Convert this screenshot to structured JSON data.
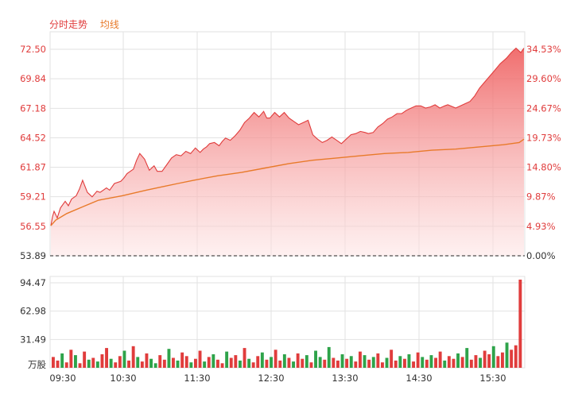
{
  "header": {
    "price_label": "分时走势",
    "avg_label": "均线"
  },
  "colors": {
    "up": "#e03c3c",
    "down": "#2ea34a",
    "avg_line": "#e87a2a",
    "grid": "#e2e2e2",
    "area_top": "#ee5555",
    "area_bottom": "#fde4e4"
  },
  "chart_data": {
    "type": "line",
    "price_axis": {
      "ticks": [
        "72.50",
        "69.84",
        "67.18",
        "64.52",
        "61.87",
        "59.21",
        "56.55",
        "53.89"
      ],
      "values": [
        72.5,
        69.84,
        67.18,
        64.52,
        61.87,
        59.21,
        56.55,
        53.89
      ],
      "ylim": [
        53.89,
        72.5
      ],
      "prev_close": 53.89
    },
    "percent_axis": {
      "ticks": [
        "34.53%",
        "29.60%",
        "24.67%",
        "19.73%",
        "14.80%",
        "9.87%",
        "4.93%",
        "0.00%"
      ]
    },
    "volume_axis": {
      "ticks": [
        "94.47",
        "62.98",
        "31.49"
      ],
      "values": [
        94.47,
        62.98,
        31.49
      ],
      "unit": "万股"
    },
    "x_ticks": [
      "09:30",
      "10:30",
      "11:30",
      "12:30",
      "13:30",
      "14:30",
      "15:30"
    ],
    "series": [
      {
        "name": "分时走势",
        "x": [
          0,
          2,
          4,
          8,
          12,
          18,
          22,
          26,
          32,
          36,
          40,
          46,
          52,
          58,
          62,
          70,
          74,
          80,
          88,
          92,
          96,
          104,
          108,
          112,
          118,
          124,
          130,
          134,
          140,
          148,
          152,
          158,
          164,
          170,
          176,
          182,
          188,
          192,
          196,
          200,
          206,
          212,
          216,
          220,
          226,
          232,
          238,
          244,
          250,
          256,
          262,
          268,
          272,
          276,
          282,
          288,
          294,
          300,
          306,
          312,
          318,
          324,
          330,
          336,
          342,
          348,
          354,
          360,
          366,
          372,
          378,
          384,
          390,
          396,
          400,
          406,
          412,
          418,
          424,
          430,
          436,
          442,
          448,
          454,
          460,
          466,
          472,
          478,
          484,
          490,
          496,
          500,
          510,
          516,
          522,
          528,
          534,
          540,
          546,
          552,
          558,
          566,
          574,
          580,
          586,
          592,
          596
        ],
        "values": [
          56.6,
          57.4,
          57.9,
          57.3,
          58.2,
          58.8,
          58.4,
          59.0,
          59.3,
          59.9,
          60.7,
          59.6,
          59.2,
          59.7,
          59.6,
          60.0,
          59.8,
          60.4,
          60.6,
          60.9,
          61.3,
          61.7,
          62.5,
          63.1,
          62.6,
          61.6,
          62.0,
          61.5,
          61.5,
          62.3,
          62.7,
          63.0,
          62.9,
          63.3,
          63.1,
          63.6,
          63.2,
          63.5,
          63.7,
          64.0,
          64.1,
          63.8,
          64.2,
          64.5,
          64.3,
          64.7,
          65.2,
          65.9,
          66.3,
          66.8,
          66.4,
          66.9,
          66.3,
          66.3,
          66.8,
          66.4,
          66.8,
          66.3,
          66.0,
          65.7,
          65.9,
          66.1,
          64.8,
          64.4,
          64.1,
          64.3,
          64.6,
          64.3,
          64.0,
          64.4,
          64.8,
          64.9,
          65.1,
          65.0,
          64.9,
          65.0,
          65.5,
          65.8,
          66.2,
          66.4,
          66.7,
          66.7,
          67.0,
          67.2,
          67.4,
          67.4,
          67.2,
          67.3,
          67.5,
          67.2,
          67.4,
          67.5,
          67.2,
          67.4,
          67.6,
          67.8,
          68.3,
          69.0,
          69.5,
          70.0,
          70.5,
          71.2,
          71.7,
          72.2,
          72.6,
          72.2,
          72.6
        ],
        "color": "#e03c3c"
      },
      {
        "name": "均线",
        "x": [
          0,
          6,
          20,
          40,
          60,
          90,
          120,
          140,
          160,
          180,
          210,
          240,
          270,
          300,
          330,
          360,
          390,
          420,
          450,
          480,
          510,
          540,
          570,
          590,
          596
        ],
        "values": [
          56.6,
          57.1,
          57.7,
          58.3,
          58.9,
          59.3,
          59.8,
          60.1,
          60.4,
          60.7,
          61.1,
          61.4,
          61.8,
          62.2,
          62.5,
          62.7,
          62.9,
          63.1,
          63.2,
          63.4,
          63.5,
          63.7,
          63.9,
          64.1,
          64.4
        ],
        "color": "#e87a2a"
      }
    ],
    "volume": [
      12,
      8,
      16,
      6,
      20,
      14,
      5,
      18,
      9,
      11,
      7,
      15,
      22,
      10,
      6,
      13,
      19,
      8,
      24,
      12,
      7,
      16,
      10,
      5,
      14,
      9,
      21,
      11,
      8,
      17,
      13,
      6,
      10,
      19,
      7,
      12,
      15,
      9,
      5,
      18,
      11,
      14,
      8,
      22,
      10,
      6,
      13,
      17,
      9,
      12,
      20,
      8,
      15,
      11,
      7,
      16,
      10,
      14,
      6,
      19,
      12,
      9,
      23,
      11,
      8,
      15,
      10,
      13,
      7,
      18,
      14,
      9,
      12,
      16,
      6,
      11,
      20,
      8,
      13,
      10,
      15,
      7,
      17,
      12,
      9,
      14,
      11,
      18,
      8,
      13,
      10,
      16,
      12,
      22,
      9,
      14,
      11,
      19,
      15,
      24,
      13,
      17,
      28,
      20,
      25,
      98
    ],
    "volume_up": [
      1,
      1,
      0,
      1,
      1,
      0,
      1,
      1,
      0,
      1,
      0,
      1,
      1,
      0,
      1,
      1,
      0,
      1,
      1,
      0,
      1,
      1,
      0,
      0,
      1,
      1,
      0,
      1,
      0,
      1,
      1,
      0,
      1,
      1,
      0,
      1,
      0,
      1,
      1,
      0,
      1,
      1,
      0,
      1,
      0,
      1,
      1,
      0,
      1,
      0,
      1,
      1,
      0,
      1,
      0,
      1,
      1,
      0,
      1,
      0,
      0,
      1,
      0,
      1,
      1,
      0,
      1,
      0,
      1,
      1,
      0,
      1,
      0,
      1,
      1,
      0,
      1,
      1,
      0,
      1,
      0,
      1,
      1,
      0,
      1,
      0,
      1,
      1,
      0,
      1,
      1,
      0,
      1,
      0,
      1,
      1,
      0,
      1,
      1,
      0,
      1,
      1,
      0,
      1,
      1,
      1
    ]
  }
}
